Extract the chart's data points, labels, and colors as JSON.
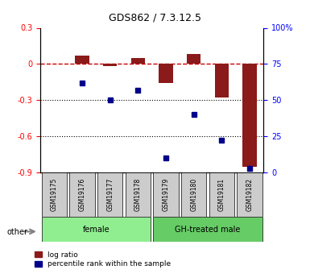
{
  "title": "GDS862 / 7.3.12.5",
  "samples": [
    "GSM19175",
    "GSM19176",
    "GSM19177",
    "GSM19178",
    "GSM19179",
    "GSM19180",
    "GSM19181",
    "GSM19182"
  ],
  "log_ratio": [
    0.005,
    0.07,
    -0.02,
    0.05,
    -0.155,
    0.085,
    -0.28,
    -0.855
  ],
  "percentile_rank": [
    null,
    62,
    50,
    57,
    10,
    40,
    22,
    3
  ],
  "groups": [
    {
      "label": "female",
      "indices": [
        0,
        1,
        2,
        3
      ],
      "color": "#90EE90"
    },
    {
      "label": "GH-treated male",
      "indices": [
        4,
        5,
        6,
        7
      ],
      "color": "#66CC66"
    }
  ],
  "ylim_left": [
    -0.9,
    0.3
  ],
  "ylim_right": [
    0,
    100
  ],
  "yticks_left": [
    0.3,
    0.0,
    -0.3,
    -0.6,
    -0.9
  ],
  "yticks_right": [
    100,
    75,
    50,
    25,
    0
  ],
  "ytick_labels_left": [
    "0.3",
    "0",
    "-0.3",
    "-0.6",
    "-0.9"
  ],
  "ytick_labels_right": [
    "100%",
    "75",
    "50",
    "25",
    "0"
  ],
  "bar_color": "#8B1A1A",
  "dot_color": "#00008B",
  "zero_line_color": "#CC0000",
  "grid_color": "#000000",
  "bg_color": "#FFFFFF",
  "legend_log_ratio": "log ratio",
  "legend_percentile": "percentile rank within the sample",
  "other_label": "other",
  "sample_box_color": "#CCCCCC"
}
